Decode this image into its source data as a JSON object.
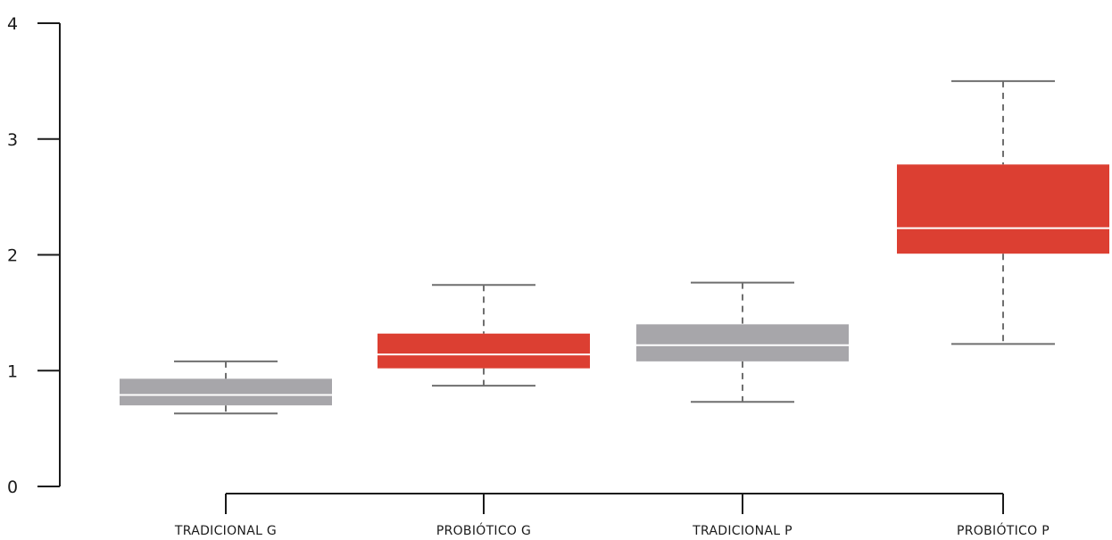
{
  "chart_data": {
    "type": "boxplot",
    "categories": [
      "TRADICIONAL G",
      "PROBIÓTICO G",
      "TRADICIONAL P",
      "PROBIÓTICO P"
    ],
    "series": [
      {
        "values": [
          {
            "whisker_low": 0.63,
            "q1": 0.7,
            "median": 0.79,
            "q3": 0.93,
            "whisker_high": 1.08,
            "color": "#a7a6aa"
          },
          {
            "whisker_low": 0.87,
            "q1": 1.02,
            "median": 1.14,
            "q3": 1.32,
            "whisker_high": 1.74,
            "color": "#dc3f32"
          },
          {
            "whisker_low": 0.73,
            "q1": 1.08,
            "median": 1.22,
            "q3": 1.4,
            "whisker_high": 1.76,
            "color": "#a7a6aa"
          },
          {
            "whisker_low": 1.23,
            "q1": 2.01,
            "median": 2.23,
            "q3": 2.78,
            "whisker_high": 3.5,
            "color": "#dc3f32"
          }
        ]
      }
    ],
    "ylim": [
      0,
      4
    ],
    "yticks": [
      "0",
      "1",
      "2",
      "3",
      "4"
    ],
    "grid": false,
    "colors": {
      "gray_box": "#a7a6aa",
      "red_box": "#dc3f32",
      "median_line": "#ffffff",
      "whisker": "#6f6f6f",
      "axis": "#1a1a1a"
    }
  }
}
